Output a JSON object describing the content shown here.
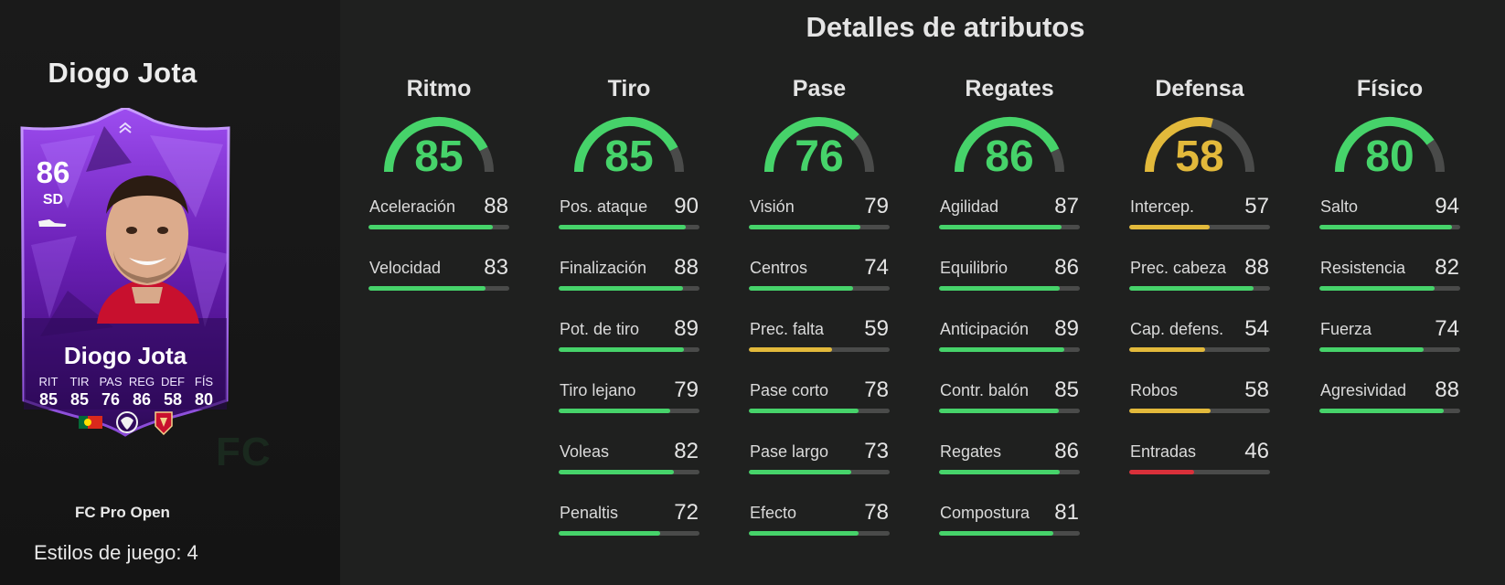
{
  "player": {
    "name": "Diogo Jota",
    "rating": "86",
    "position": "SD",
    "version": "FC Pro Open",
    "playstyles_label": "Estilos de juego: 4",
    "card_stats": [
      {
        "label": "RIT",
        "value": "85"
      },
      {
        "label": "TIR",
        "value": "85"
      },
      {
        "label": "PAS",
        "value": "76"
      },
      {
        "label": "REG",
        "value": "86"
      },
      {
        "label": "DEF",
        "value": "58"
      },
      {
        "label": "FÍS",
        "value": "80"
      }
    ],
    "icons": [
      "boot-icon",
      "portugal-flag-icon",
      "premier-league-icon",
      "liverpool-crest-icon"
    ]
  },
  "watermark": "FC",
  "section_title": "Detalles de atributos",
  "colors": {
    "green": "#46d36a",
    "yellow": "#e2b93b",
    "red": "#d9303a",
    "track": "#4a4b4a",
    "card_purple": "#7a2cc4"
  },
  "categories": [
    {
      "name": "Ritmo",
      "value": "85",
      "color": "green",
      "attributes": [
        {
          "name": "Aceleración",
          "value": "88",
          "color": "green"
        },
        {
          "name": "Velocidad",
          "value": "83",
          "color": "green"
        }
      ]
    },
    {
      "name": "Tiro",
      "value": "85",
      "color": "green",
      "attributes": [
        {
          "name": "Pos. ataque",
          "value": "90",
          "color": "green"
        },
        {
          "name": "Finalización",
          "value": "88",
          "color": "green"
        },
        {
          "name": "Pot. de tiro",
          "value": "89",
          "color": "green"
        },
        {
          "name": "Tiro lejano",
          "value": "79",
          "color": "green"
        },
        {
          "name": "Voleas",
          "value": "82",
          "color": "green"
        },
        {
          "name": "Penaltis",
          "value": "72",
          "color": "green"
        }
      ]
    },
    {
      "name": "Pase",
      "value": "76",
      "color": "green",
      "attributes": [
        {
          "name": "Visión",
          "value": "79",
          "color": "green"
        },
        {
          "name": "Centros",
          "value": "74",
          "color": "green"
        },
        {
          "name": "Prec. falta",
          "value": "59",
          "color": "yellow"
        },
        {
          "name": "Pase corto",
          "value": "78",
          "color": "green"
        },
        {
          "name": "Pase largo",
          "value": "73",
          "color": "green"
        },
        {
          "name": "Efecto",
          "value": "78",
          "color": "green"
        }
      ]
    },
    {
      "name": "Regates",
      "value": "86",
      "color": "green",
      "attributes": [
        {
          "name": "Agilidad",
          "value": "87",
          "color": "green"
        },
        {
          "name": "Equilibrio",
          "value": "86",
          "color": "green"
        },
        {
          "name": "Anticipación",
          "value": "89",
          "color": "green"
        },
        {
          "name": "Contr. balón",
          "value": "85",
          "color": "green"
        },
        {
          "name": "Regates",
          "value": "86",
          "color": "green"
        },
        {
          "name": "Compostura",
          "value": "81",
          "color": "green"
        }
      ]
    },
    {
      "name": "Defensa",
      "value": "58",
      "color": "yellow",
      "attributes": [
        {
          "name": "Intercep.",
          "value": "57",
          "color": "yellow"
        },
        {
          "name": "Prec. cabeza",
          "value": "88",
          "color": "green"
        },
        {
          "name": "Cap. defens.",
          "value": "54",
          "color": "yellow"
        },
        {
          "name": "Robos",
          "value": "58",
          "color": "yellow"
        },
        {
          "name": "Entradas",
          "value": "46",
          "color": "red"
        }
      ]
    },
    {
      "name": "Físico",
      "value": "80",
      "color": "green",
      "attributes": [
        {
          "name": "Salto",
          "value": "94",
          "color": "green"
        },
        {
          "name": "Resistencia",
          "value": "82",
          "color": "green"
        },
        {
          "name": "Fuerza",
          "value": "74",
          "color": "green"
        },
        {
          "name": "Agresividad",
          "value": "88",
          "color": "green"
        }
      ]
    }
  ]
}
